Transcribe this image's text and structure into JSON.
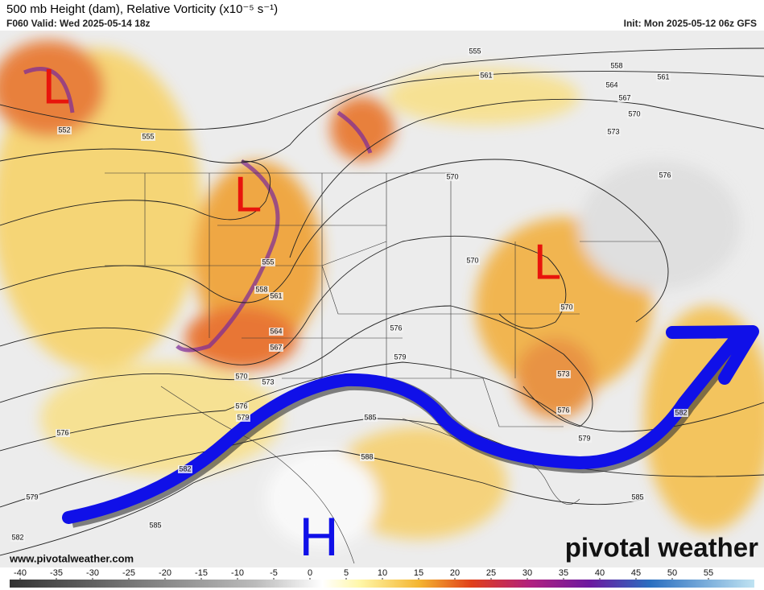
{
  "header": {
    "title": "500 mb Height (dam), Relative Vorticity (x10⁻⁵ s⁻¹)",
    "valid": "F060 Valid: Wed 2025-05-14 18z",
    "init": "Init: Mon 2025-05-12 06z GFS"
  },
  "pressure_centers": [
    "L",
    "L",
    "L",
    "H"
  ],
  "contour_labels": [
    555,
    558,
    561,
    561,
    564,
    567,
    570,
    573,
    576,
    570,
    552,
    555,
    555,
    558,
    561,
    564,
    567,
    570,
    570,
    576,
    579,
    573,
    576,
    579,
    570,
    573,
    576,
    579,
    576,
    585,
    588,
    582,
    585,
    579,
    582,
    585,
    582
  ],
  "footer": {
    "url": "www.pivotalweather.com",
    "logo": "pivotal weather"
  },
  "colorbar": {
    "ticks": [
      -40,
      -35,
      -30,
      -25,
      -20,
      -15,
      -10,
      -5,
      0,
      5,
      10,
      15,
      20,
      25,
      30,
      35,
      40,
      45,
      50,
      55
    ]
  }
}
